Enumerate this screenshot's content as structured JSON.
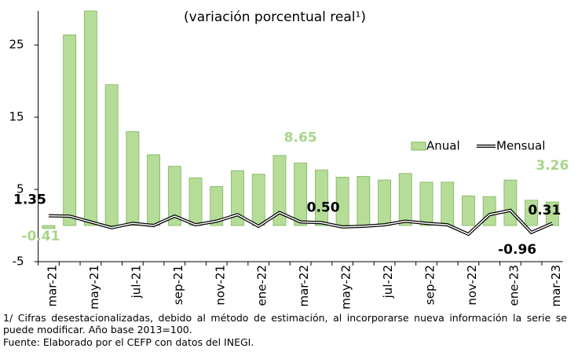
{
  "chart_data": {
    "type": "bar_line",
    "subtitle": "(variación porcentual real¹)",
    "categories": [
      "mar-21",
      null,
      "may-21",
      null,
      "jul-21",
      null,
      "sep-21",
      null,
      "nov-21",
      null,
      "ene-22",
      null,
      "mar-22",
      null,
      "may-22",
      null,
      "jul-22",
      null,
      "sep-22",
      null,
      "nov-22",
      null,
      "ene-23",
      null,
      "mar-23"
    ],
    "series": [
      {
        "name": "Anual",
        "color": "#b5dd98",
        "values": [
          -0.41,
          26.4,
          29.7,
          19.5,
          13.0,
          9.8,
          8.2,
          6.6,
          5.4,
          7.6,
          7.1,
          9.7,
          8.65,
          7.7,
          6.7,
          6.8,
          6.3,
          7.2,
          6.0,
          6.0,
          4.1,
          4.0,
          6.3,
          3.5,
          3.26
        ],
        "value_labels": [
          "-0.41",
          null,
          null,
          null,
          null,
          null,
          null,
          null,
          null,
          null,
          null,
          null,
          "8.65",
          null,
          null,
          null,
          null,
          null,
          null,
          null,
          null,
          null,
          null,
          null,
          "3.26"
        ]
      },
      {
        "name": "Mensual",
        "color": "#000000",
        "values": [
          1.35,
          1.3,
          0.5,
          -0.3,
          0.3,
          0.0,
          1.3,
          0.1,
          0.6,
          1.5,
          -0.1,
          1.8,
          0.5,
          0.4,
          -0.2,
          -0.1,
          0.1,
          0.6,
          0.3,
          0.1,
          -1.2,
          1.5,
          2.1,
          -0.96,
          0.31
        ],
        "value_labels": [
          "1.35",
          null,
          null,
          null,
          null,
          null,
          null,
          null,
          null,
          null,
          null,
          null,
          "0.50",
          null,
          null,
          null,
          null,
          null,
          null,
          null,
          null,
          null,
          null,
          "-0.96",
          "0.31"
        ]
      }
    ],
    "ylim": [
      -5,
      29.7
    ],
    "yticks": [
      -5,
      5,
      15,
      25
    ],
    "legend": "right",
    "annotations": [
      "1/ Cifras desestacionalizadas, debido al método de estimación, al incorporarse nueva información la serie se puede modificar. Año base 2013=100.",
      "Fuente: Elaborado por el CEFP con datos del INEGI."
    ]
  }
}
